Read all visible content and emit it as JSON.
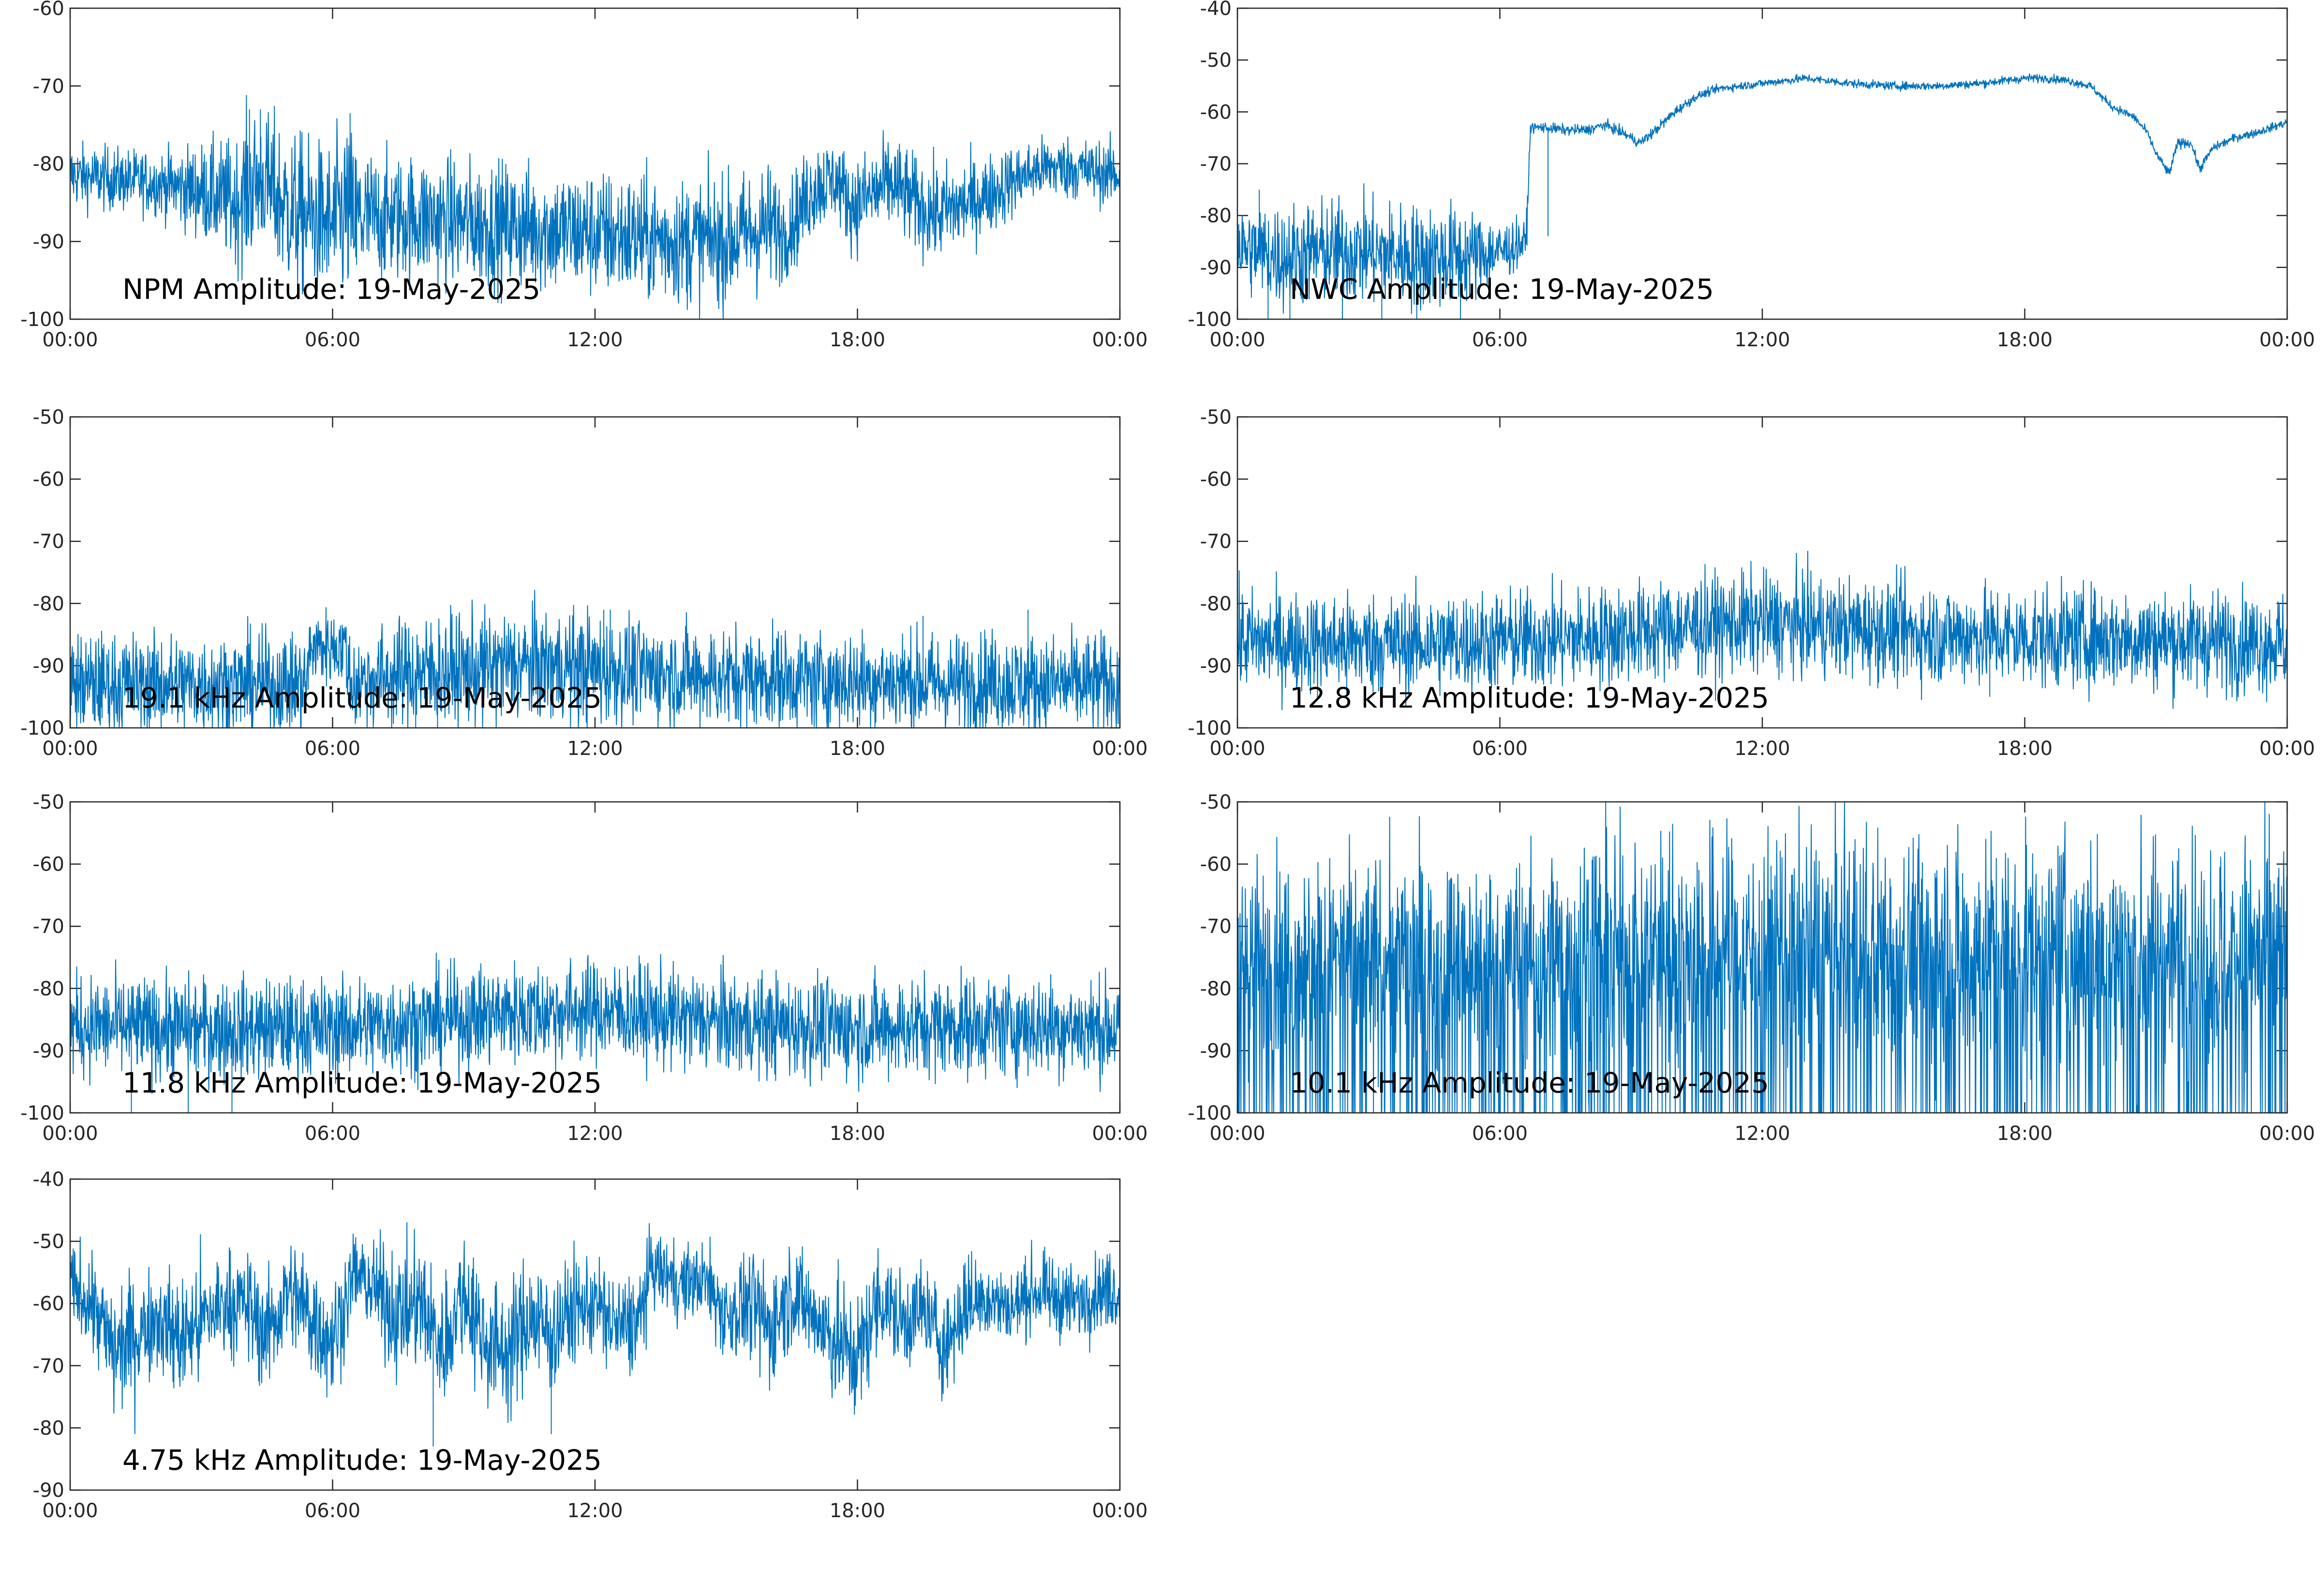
{
  "figure": {
    "line_color": "#0072BD"
  },
  "chart_data": [
    {
      "type": "line",
      "title": "NPM Amplitude: 19-May-2025",
      "xlabel": "",
      "ylabel": "",
      "x_ticks": [
        "00:00",
        "06:00",
        "12:00",
        "18:00",
        "00:00"
      ],
      "x_range_hours": [
        0,
        24
      ],
      "ylim": [
        -100,
        -60
      ],
      "y_ticks": [
        -100,
        -90,
        -80,
        -70,
        -60
      ],
      "grid": false,
      "series": [
        {
          "x_hours": [
            0,
            1,
            2,
            3,
            3.8,
            4.1,
            4.4,
            4.7,
            5,
            5.5,
            6,
            6.3,
            6.5,
            7,
            8,
            9,
            10,
            11,
            12,
            13,
            14,
            15,
            15.5,
            16,
            16.3,
            16.7,
            17,
            17.5,
            17.9,
            18.3,
            18.8,
            19.3,
            19.8,
            20.3,
            20.8,
            21.3,
            21.8,
            22.3,
            22.8,
            23.4,
            24
          ],
          "center": [
            -81.5,
            -82,
            -82.5,
            -83.5,
            -85,
            -83,
            -82,
            -84,
            -86,
            -87,
            -88,
            -86,
            -87,
            -87,
            -87,
            -87.5,
            -88,
            -88.5,
            -89,
            -89.5,
            -90,
            -90,
            -89,
            -88,
            -89,
            -86,
            -83,
            -82,
            -85.5,
            -84,
            -82.5,
            -85,
            -86.5,
            -85.5,
            -84.5,
            -83,
            -81.5,
            -80.5,
            -80.5,
            -81,
            -81.5
          ],
          "noise": [
            2,
            2,
            2,
            3,
            4,
            5,
            4,
            5,
            5,
            5,
            5,
            6,
            5,
            4,
            4,
            4,
            4,
            4,
            4,
            4,
            4,
            4,
            4,
            4,
            3,
            3,
            3,
            2.5,
            3,
            3,
            3,
            3,
            3,
            3,
            2.5,
            2.5,
            2,
            2,
            2,
            2,
            2
          ],
          "spikes_hours": [
            4.1,
            4.35,
            6.4,
            6.55
          ],
          "spike_to": [
            -73,
            -73,
            -73.5,
            -93
          ]
        }
      ]
    },
    {
      "type": "line",
      "title": "NWC Amplitude: 19-May-2025",
      "xlabel": "",
      "ylabel": "",
      "x_ticks": [
        "00:00",
        "06:00",
        "12:00",
        "18:00",
        "00:00"
      ],
      "x_range_hours": [
        0,
        24
      ],
      "ylim": [
        -100,
        -40
      ],
      "y_ticks": [
        -100,
        -90,
        -80,
        -70,
        -60,
        -50,
        -40
      ],
      "grid": false,
      "series": [
        {
          "x_hours": [
            0,
            1,
            2,
            3,
            4,
            5,
            6,
            6.6,
            6.7,
            7,
            7.5,
            8,
            8.4,
            8.8,
            9.2,
            9.5,
            10,
            10.5,
            11,
            11.5,
            12,
            12.5,
            13,
            14,
            15,
            16,
            17,
            18,
            18.5,
            19,
            19.5,
            20,
            20.5,
            20.8,
            21,
            21.3,
            21.5,
            21.8,
            22,
            22.3,
            22.8,
            23.3,
            24
          ],
          "center": [
            -86,
            -88,
            -87,
            -87,
            -88,
            -88,
            -87,
            -85,
            -63,
            -63,
            -63.5,
            -63.5,
            -62.5,
            -64,
            -66,
            -64,
            -60,
            -57,
            -55.5,
            -55,
            -54.5,
            -54,
            -53.5,
            -54.5,
            -55,
            -55,
            -54.5,
            -53.5,
            -53.5,
            -54,
            -55,
            -59,
            -61,
            -64,
            -68,
            -72,
            -66,
            -66,
            -71,
            -67,
            -65,
            -64,
            -62
          ],
          "noise": [
            4,
            5,
            5,
            5,
            5,
            5,
            3,
            2,
            0.5,
            0.5,
            0.5,
            0.5,
            0.5,
            0.5,
            0.5,
            0.5,
            0.5,
            0.4,
            0.4,
            0.4,
            0.4,
            0.4,
            0.4,
            0.4,
            0.4,
            0.4,
            0.4,
            0.4,
            0.4,
            0.4,
            0.4,
            0.4,
            0.4,
            0.4,
            0.4,
            0.5,
            0.5,
            0.4,
            0.5,
            0.4,
            0.4,
            0.4,
            0.4
          ],
          "spikes_hours": [
            0.5,
            0.7,
            1.2,
            2.4,
            3.3,
            4.1,
            5.1,
            7.1
          ],
          "spike_to": [
            -75,
            -100,
            -100,
            -100,
            -100,
            -100,
            -100,
            -84
          ]
        }
      ]
    },
    {
      "type": "line",
      "title": "19.1 kHz Amplitude: 19-May-2025",
      "xlabel": "",
      "ylabel": "",
      "x_ticks": [
        "00:00",
        "06:00",
        "12:00",
        "18:00",
        "00:00"
      ],
      "x_range_hours": [
        0,
        24
      ],
      "ylim": [
        -100,
        -50
      ],
      "y_ticks": [
        -100,
        -90,
        -80,
        -70,
        -60,
        -50
      ],
      "grid": false,
      "series": [
        {
          "x_hours": [
            0,
            2,
            4,
            5.4,
            5.5,
            6.3,
            6.4,
            7,
            8,
            9,
            10,
            11,
            12,
            13,
            14,
            15,
            16,
            17,
            18,
            19,
            20,
            21,
            22,
            23,
            24
          ],
          "center": [
            -93,
            -93,
            -93,
            -93,
            -87,
            -87,
            -93,
            -92,
            -91,
            -91,
            -90,
            -90,
            -90.5,
            -91,
            -91.5,
            -92,
            -92,
            -92.5,
            -92.5,
            -92.5,
            -93,
            -92.5,
            -93,
            -93,
            -93
          ],
          "noise": [
            4,
            4,
            4,
            4,
            3,
            3,
            4,
            4,
            4.5,
            4.5,
            4.5,
            4.5,
            4.5,
            4,
            4,
            4,
            4,
            4,
            4,
            4,
            4,
            4,
            4,
            4,
            4
          ],
          "spikes_hours": [
            7.9,
            8.4,
            12.2,
            12.35,
            19.5,
            21.9,
            22.0
          ],
          "spike_to": [
            -100,
            -100,
            -81,
            -81,
            -82,
            -81,
            -92
          ]
        }
      ]
    },
    {
      "type": "line",
      "title": "12.8 kHz Amplitude: 19-May-2025",
      "xlabel": "",
      "ylabel": "",
      "x_ticks": [
        "00:00",
        "06:00",
        "12:00",
        "18:00",
        "00:00"
      ],
      "x_range_hours": [
        0,
        24
      ],
      "ylim": [
        -100,
        -50
      ],
      "y_ticks": [
        -100,
        -90,
        -80,
        -70,
        -60,
        -50
      ],
      "grid": false,
      "series": [
        {
          "x_hours": [
            0,
            2,
            4,
            6,
            8,
            10,
            12,
            14,
            16,
            18,
            20,
            22,
            24
          ],
          "center": [
            -86,
            -86.5,
            -86.5,
            -86,
            -85.5,
            -84,
            -83,
            -84,
            -85,
            -85.5,
            -85.5,
            -86,
            -86.5
          ],
          "noise": [
            4,
            4,
            4,
            4,
            4,
            4,
            4,
            4,
            4,
            4,
            4,
            4,
            4
          ],
          "spikes_hours": [
            2.5,
            10.5,
            17.2,
            22.3
          ],
          "spike_to": [
            -95,
            -78,
            -95,
            -78
          ]
        }
      ]
    },
    {
      "type": "line",
      "title": "11.8 kHz Amplitude: 19-May-2025",
      "xlabel": "",
      "ylabel": "",
      "x_ticks": [
        "00:00",
        "06:00",
        "12:00",
        "18:00",
        "00:00"
      ],
      "x_range_hours": [
        0,
        24
      ],
      "ylim": [
        -100,
        -50
      ],
      "y_ticks": [
        -100,
        -90,
        -80,
        -70,
        -60,
        -50
      ],
      "grid": false,
      "series": [
        {
          "x_hours": [
            0,
            2,
            4,
            6,
            8,
            10,
            12,
            14,
            16,
            18,
            20,
            22,
            24
          ],
          "center": [
            -86,
            -86.5,
            -86.5,
            -86.5,
            -85.5,
            -84,
            -83.5,
            -85,
            -86,
            -86.5,
            -86,
            -86,
            -86.5
          ],
          "noise": [
            4,
            4,
            4,
            4,
            4,
            4,
            4,
            4,
            4,
            4,
            4,
            4,
            4
          ],
          "spikes_hours": [
            1.4,
            2.7,
            3.7
          ],
          "spike_to": [
            -100,
            -100,
            -100
          ]
        }
      ]
    },
    {
      "type": "line",
      "title": "10.1 kHz Amplitude: 19-May-2025",
      "xlabel": "",
      "ylabel": "",
      "x_ticks": [
        "00:00",
        "06:00",
        "12:00",
        "18:00",
        "00:00"
      ],
      "x_range_hours": [
        0,
        24
      ],
      "ylim": [
        -100,
        -50
      ],
      "y_ticks": [
        -100,
        -90,
        -80,
        -70,
        -60,
        -50
      ],
      "grid": false,
      "series": [
        {
          "x_hours": [
            0,
            2,
            4,
            6,
            8,
            10,
            12,
            14,
            16,
            18,
            20,
            22,
            24
          ],
          "center": [
            -75,
            -75,
            -75,
            -75,
            -74,
            -73,
            -73,
            -73,
            -74,
            -74,
            -74,
            -74,
            -74
          ],
          "noise": [
            8,
            8,
            8,
            8,
            9,
            9,
            9,
            9,
            9,
            9,
            9,
            9,
            9
          ],
          "spikes_hours": [],
          "spike_to": [],
          "dropout_rate": 0.18
        }
      ]
    },
    {
      "type": "line",
      "title": "4.75 kHz Amplitude: 19-May-2025",
      "xlabel": "",
      "ylabel": "",
      "x_ticks": [
        "00:00",
        "06:00",
        "12:00",
        "18:00",
        "00:00"
      ],
      "x_range_hours": [
        0,
        24
      ],
      "ylim": [
        -90,
        -40
      ],
      "y_ticks": [
        -90,
        -80,
        -70,
        -60,
        -50,
        -40
      ],
      "grid": false,
      "series": [
        {
          "x_hours": [
            0,
            0.5,
            1,
            1.5,
            2,
            2.5,
            3,
            3.5,
            4,
            4.5,
            5,
            5.5,
            6,
            6.5,
            7,
            7.5,
            8,
            8.5,
            9,
            9.5,
            10,
            10.5,
            11,
            11.5,
            12,
            12.5,
            13,
            13.3,
            13.5,
            14,
            14.5,
            15,
            15.5,
            16,
            16.5,
            17,
            17.5,
            18,
            18.5,
            19,
            19.5,
            20,
            20.5,
            21,
            21.5,
            22,
            22.5,
            23,
            23.5,
            24
          ],
          "center": [
            -57,
            -60,
            -68,
            -65,
            -62,
            -66,
            -63,
            -60,
            -60,
            -65,
            -58,
            -62,
            -66,
            -55,
            -58,
            -62,
            -60,
            -67,
            -58,
            -66,
            -68,
            -62,
            -65,
            -61,
            -60,
            -64,
            -63,
            -54,
            -55,
            -57,
            -56,
            -62,
            -60,
            -64,
            -58,
            -62,
            -66,
            -69,
            -59,
            -63,
            -61,
            -67,
            -60,
            -59,
            -61,
            -58,
            -59,
            -60,
            -58,
            -58
          ],
          "noise": [
            3,
            4,
            5,
            5,
            4,
            5,
            5,
            4,
            4,
            5,
            4,
            5,
            5,
            3,
            4,
            5,
            5,
            5,
            5,
            5,
            5,
            5,
            5,
            4,
            4,
            4,
            4,
            3,
            3,
            3,
            3,
            4,
            4,
            5,
            4,
            4,
            5,
            5,
            4,
            4,
            4,
            4,
            4,
            3,
            3,
            3,
            3,
            3,
            3,
            3
          ],
          "spikes_hours": [
            8.3,
            11.0
          ],
          "spike_to": [
            -83,
            -81
          ]
        }
      ]
    }
  ]
}
